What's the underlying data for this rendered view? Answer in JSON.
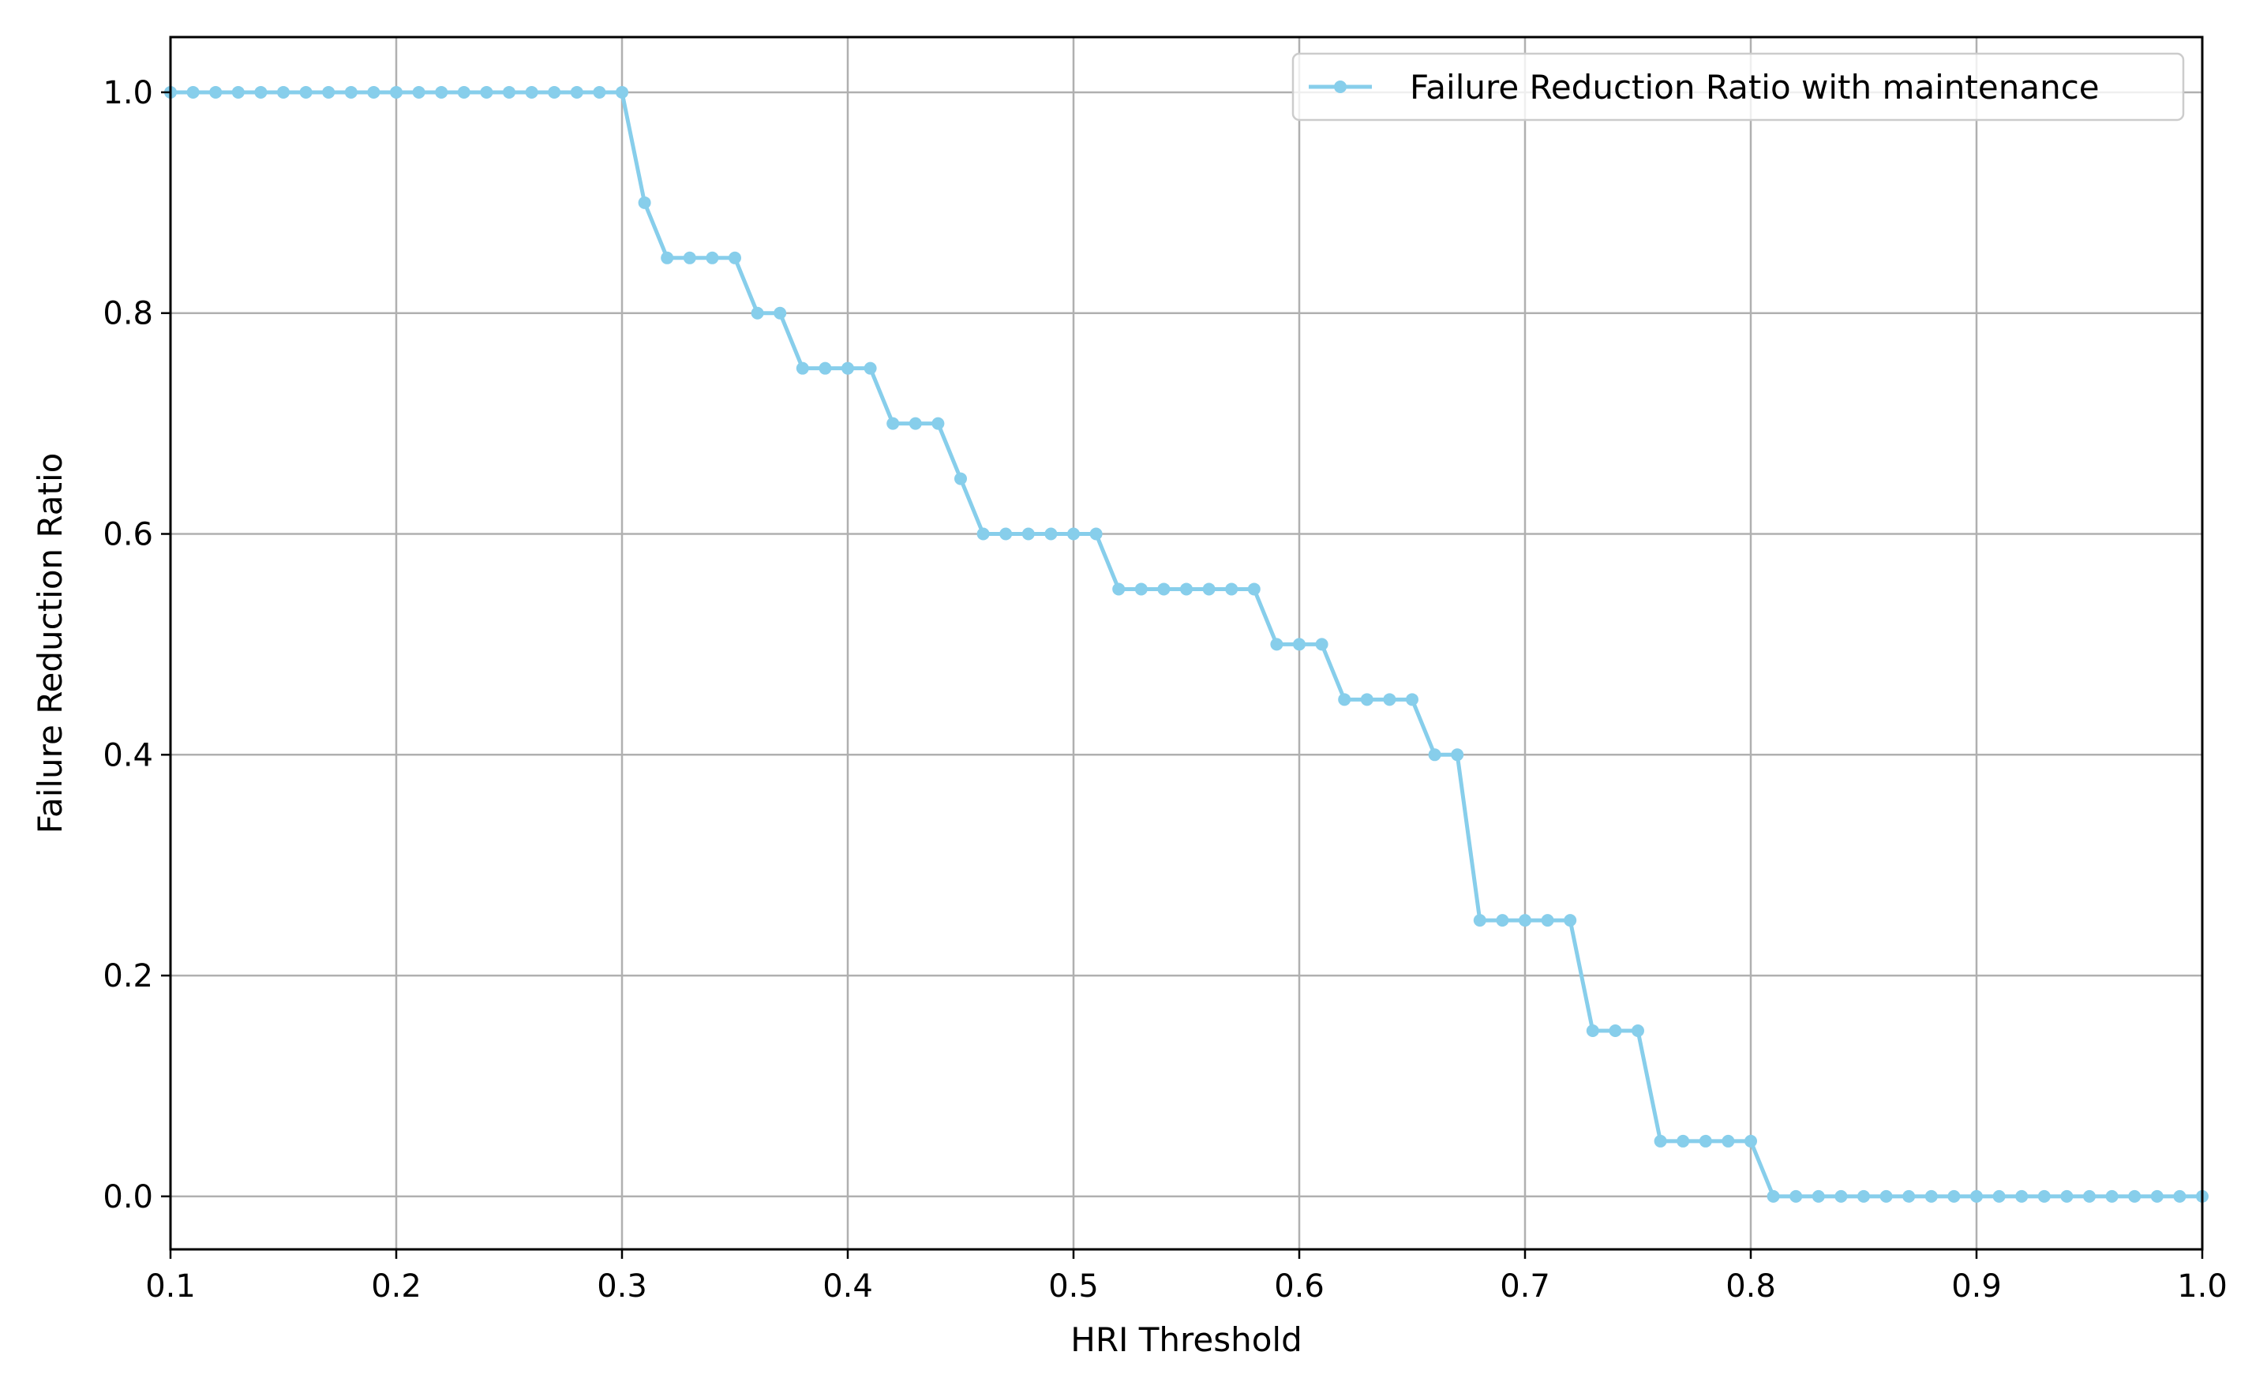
{
  "chart_data": {
    "type": "line",
    "xlabel": "HRI Threshold",
    "ylabel": "Failure Reduction Ratio",
    "xlim": [
      0.1,
      1.0
    ],
    "ylim": [
      -0.048,
      1.05
    ],
    "x_ticks": [
      "0.1",
      "0.2",
      "0.3",
      "0.4",
      "0.5",
      "0.6",
      "0.7",
      "0.8",
      "0.9",
      "1.0"
    ],
    "y_ticks": [
      "0.0",
      "0.2",
      "0.4",
      "0.6",
      "0.8",
      "1.0"
    ],
    "grid": true,
    "legend_position": "top-right",
    "series": [
      {
        "name": "Failure Reduction Ratio with maintenance",
        "color": "#87CEEB",
        "marker": "circle",
        "x": [
          0.1,
          0.11,
          0.12,
          0.13,
          0.14,
          0.15,
          0.16,
          0.17,
          0.18,
          0.19,
          0.2,
          0.21,
          0.22,
          0.23,
          0.24,
          0.25,
          0.26,
          0.27,
          0.28,
          0.29,
          0.3,
          0.31,
          0.32,
          0.33,
          0.34,
          0.35,
          0.36,
          0.37,
          0.38,
          0.39,
          0.4,
          0.41,
          0.42,
          0.43,
          0.44,
          0.45,
          0.46,
          0.47,
          0.48,
          0.49,
          0.5,
          0.51,
          0.52,
          0.53,
          0.54,
          0.55,
          0.56,
          0.57,
          0.58,
          0.59,
          0.6,
          0.61,
          0.62,
          0.63,
          0.64,
          0.65,
          0.66,
          0.67,
          0.68,
          0.69,
          0.7,
          0.71,
          0.72,
          0.73,
          0.74,
          0.75,
          0.76,
          0.77,
          0.78,
          0.79,
          0.8,
          0.81,
          0.82,
          0.83,
          0.84,
          0.85,
          0.86,
          0.87,
          0.88,
          0.89,
          0.9,
          0.91,
          0.92,
          0.93,
          0.94,
          0.95,
          0.96,
          0.97,
          0.98,
          0.99,
          1.0
        ],
        "y": [
          1.0,
          1.0,
          1.0,
          1.0,
          1.0,
          1.0,
          1.0,
          1.0,
          1.0,
          1.0,
          1.0,
          1.0,
          1.0,
          1.0,
          1.0,
          1.0,
          1.0,
          1.0,
          1.0,
          1.0,
          1.0,
          0.9,
          0.85,
          0.85,
          0.85,
          0.85,
          0.8,
          0.8,
          0.75,
          0.75,
          0.75,
          0.75,
          0.7,
          0.7,
          0.7,
          0.65,
          0.6,
          0.6,
          0.6,
          0.6,
          0.6,
          0.6,
          0.55,
          0.55,
          0.55,
          0.55,
          0.55,
          0.55,
          0.55,
          0.5,
          0.5,
          0.5,
          0.45,
          0.45,
          0.45,
          0.45,
          0.4,
          0.4,
          0.25,
          0.25,
          0.25,
          0.25,
          0.25,
          0.15,
          0.15,
          0.15,
          0.05,
          0.05,
          0.05,
          0.05,
          0.05,
          0.0,
          0.0,
          0.0,
          0.0,
          0.0,
          0.0,
          0.0,
          0.0,
          0.0,
          0.0,
          0.0,
          0.0,
          0.0,
          0.0,
          0.0,
          0.0,
          0.0,
          0.0,
          0.0,
          0.0
        ]
      }
    ]
  }
}
